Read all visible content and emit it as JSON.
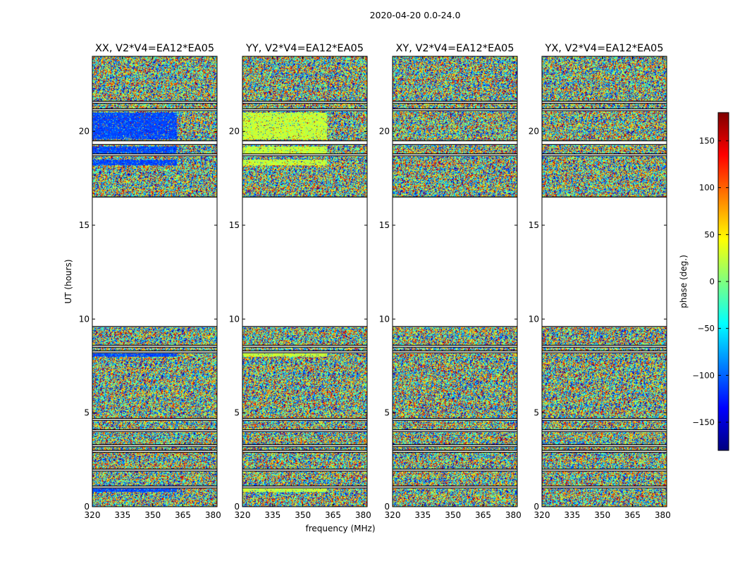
{
  "figure": {
    "suptitle": "2020-04-20 0.0-24.0",
    "xlabel": "frequency (MHz)",
    "ylabel": "UT (hours)",
    "colorbar_label": "phase (deg.)"
  },
  "chart_data": {
    "type": "heatmap",
    "xlim": [
      320,
      382
    ],
    "ylim": [
      0,
      24
    ],
    "x_ticks": [
      320,
      335,
      350,
      365,
      380
    ],
    "y_ticks": [
      0,
      5,
      10,
      15,
      20
    ],
    "color_scale": {
      "min": -180,
      "max": 180,
      "ticks": [
        150,
        100,
        50,
        0,
        -50,
        -100,
        -150
      ],
      "tick_labels": [
        "150",
        "100",
        "50",
        "0",
        "−50",
        "−100",
        "−150"
      ],
      "colormap": "jet",
      "stops": [
        "#00007f",
        "#0000ff",
        "#007fff",
        "#00ffff",
        "#7fff7f",
        "#ffff00",
        "#ff7f00",
        "#ff0000",
        "#7f0000"
      ]
    },
    "no_data_hours": [
      [
        9.6,
        16.5
      ],
      [
        21.5,
        21.6
      ],
      [
        21.1,
        21.2
      ],
      [
        19.3,
        19.5
      ],
      [
        18.7,
        18.8
      ],
      [
        8.5,
        8.6
      ],
      [
        8.2,
        8.3
      ],
      [
        4.6,
        4.7
      ],
      [
        4.0,
        4.1
      ],
      [
        3.2,
        3.3
      ],
      [
        2.9,
        3.0
      ],
      [
        1.9,
        2.0
      ],
      [
        1.0,
        1.1
      ]
    ],
    "panels": [
      {
        "title": "XX, V2*V4=EA12*EA05",
        "stable_phase": -110,
        "stable_rows": [
          [
            19.6,
            21.0
          ],
          [
            18.2,
            18.5
          ],
          [
            18.8,
            19.2
          ],
          [
            8.0,
            8.3
          ],
          [
            0.8,
            1.0
          ]
        ],
        "stable_max_mhz": 362
      },
      {
        "title": "YY, V2*V4=EA12*EA05",
        "stable_phase": 25,
        "stable_rows": [
          [
            19.6,
            21.0
          ],
          [
            18.2,
            18.5
          ],
          [
            18.8,
            19.2
          ],
          [
            8.0,
            8.3
          ],
          [
            0.8,
            1.0
          ]
        ],
        "stable_max_mhz": 362
      },
      {
        "title": "XY, V2*V4=EA12*EA05",
        "stable_phase": null,
        "stable_rows": [],
        "stable_max_mhz": 320
      },
      {
        "title": "YX, V2*V4=EA12*EA05",
        "stable_phase": null,
        "stable_rows": [],
        "stable_max_mhz": 320
      }
    ]
  }
}
